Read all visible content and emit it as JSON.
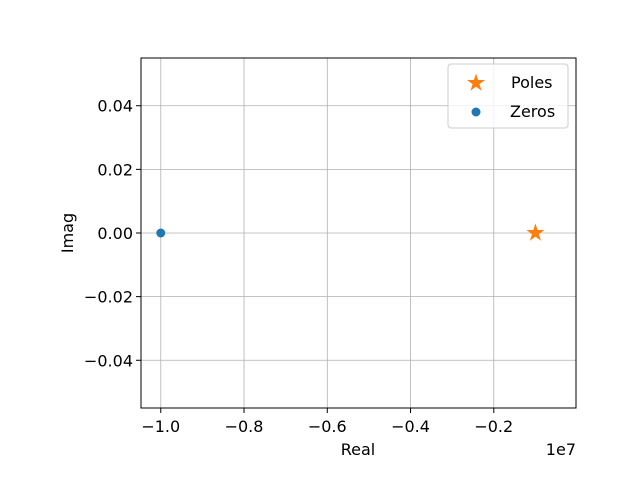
{
  "chart_data": {
    "type": "scatter",
    "xlabel": "Real",
    "ylabel": "Imag",
    "x_offset_label": "1e7",
    "xlim": [
      -1.0475,
      -0.0025
    ],
    "ylim": [
      -0.055,
      0.055
    ],
    "xticks": [
      -1.0,
      -0.8,
      -0.6,
      -0.4,
      -0.2
    ],
    "xtick_labels": [
      "−1.0",
      "−0.8",
      "−0.6",
      "−0.4",
      "−0.2"
    ],
    "yticks": [
      -0.04,
      -0.02,
      0.0,
      0.02,
      0.04
    ],
    "ytick_labels": [
      "−0.04",
      "−0.02",
      "0.00",
      "0.02",
      "0.04"
    ],
    "grid": true,
    "legend_position": "top-right",
    "series": [
      {
        "name": "Poles",
        "marker": "star",
        "color": "#ff7f0e",
        "x": [
          -0.1
        ],
        "y": [
          0.0
        ]
      },
      {
        "name": "Zeros",
        "marker": "circle",
        "color": "#1f77b4",
        "x": [
          -1.0
        ],
        "y": [
          0.0
        ]
      }
    ]
  }
}
